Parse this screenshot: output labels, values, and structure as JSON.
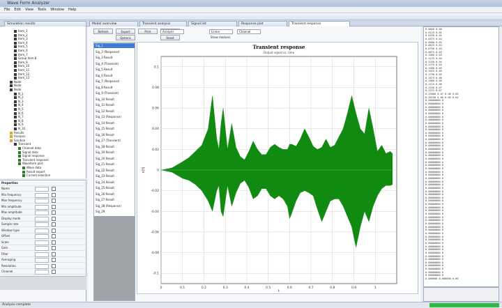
{
  "window": {
    "title": "Wave Form Analyzer"
  },
  "menu": [
    "File",
    "Edit",
    "View",
    "Tools",
    "Window",
    "Help"
  ],
  "tabs": [
    {
      "label": "Simulation results"
    },
    {
      "label": "Model overview"
    },
    {
      "label": "Transient analysis"
    },
    {
      "label": "Signal list"
    },
    {
      "label": "Response plot"
    },
    {
      "label": "Transient response"
    }
  ],
  "tree": {
    "items": [
      {
        "label": "Item_1",
        "kind": "node",
        "indent": 1
      },
      {
        "label": "Item_2",
        "kind": "node",
        "indent": 1
      },
      {
        "label": "Item_3",
        "kind": "node",
        "indent": 1
      },
      {
        "label": "Item_4",
        "kind": "node",
        "indent": 1
      },
      {
        "label": "Item_5",
        "kind": "node",
        "indent": 1
      },
      {
        "label": "Item_6",
        "kind": "node",
        "indent": 1
      },
      {
        "label": "Item_7",
        "kind": "node",
        "indent": 1
      },
      {
        "label": "Group item 8",
        "kind": "node",
        "indent": 1
      },
      {
        "label": "Item_9",
        "kind": "node",
        "indent": 1
      },
      {
        "label": "Item_10",
        "kind": "node",
        "indent": 1
      },
      {
        "label": "Item_11",
        "kind": "node",
        "indent": 1
      },
      {
        "label": "Item_12",
        "kind": "node",
        "indent": 1
      },
      {
        "label": "Item_13",
        "kind": "node",
        "indent": 1
      },
      {
        "label": "Node",
        "kind": "node",
        "indent": 0
      },
      {
        "label": "Node",
        "kind": "node",
        "indent": 0
      },
      {
        "label": "Node",
        "kind": "node",
        "indent": 0
      },
      {
        "label": "N_1",
        "kind": "node",
        "indent": 1
      },
      {
        "label": "N_2",
        "kind": "node",
        "indent": 1
      },
      {
        "label": "N_3",
        "kind": "node",
        "indent": 1
      },
      {
        "label": "N_4",
        "kind": "node",
        "indent": 1
      },
      {
        "label": "N_5",
        "kind": "node",
        "indent": 1
      },
      {
        "label": "N_6",
        "kind": "node",
        "indent": 1
      },
      {
        "label": "N_7",
        "kind": "node",
        "indent": 1
      },
      {
        "label": "N_8",
        "kind": "node",
        "indent": 1
      },
      {
        "label": "N_9",
        "kind": "node",
        "indent": 1
      },
      {
        "label": "N_10",
        "kind": "node",
        "indent": 1
      },
      {
        "label": "Results",
        "kind": "folder",
        "indent": 0
      },
      {
        "label": "Analysis",
        "kind": "folder",
        "indent": 0
      },
      {
        "label": "Solution",
        "kind": "folder",
        "indent": 0
      },
      {
        "label": "Transient",
        "kind": "node",
        "indent": 1
      },
      {
        "label": "Channel data",
        "kind": "wave",
        "indent": 2
      },
      {
        "label": "Signal data",
        "kind": "wave",
        "indent": 2
      },
      {
        "label": "Signal response",
        "kind": "wave",
        "indent": 2
      },
      {
        "label": "Transient response",
        "kind": "wave",
        "indent": 2
      },
      {
        "label": "Waveform plot",
        "kind": "wave",
        "indent": 2
      },
      {
        "label": "Wave data",
        "kind": "wave",
        "indent": 3
      },
      {
        "label": "Result export",
        "kind": "wave",
        "indent": 3
      },
      {
        "label": "Current selection",
        "kind": "wave",
        "indent": 3
      }
    ]
  },
  "properties": {
    "header": "Properties",
    "rows": [
      {
        "label": "Name"
      },
      {
        "label": "Min frequency"
      },
      {
        "label": "Max frequency"
      },
      {
        "label": "Min amplitude"
      },
      {
        "label": "Max amplitude"
      },
      {
        "label": "Display mode"
      },
      {
        "label": "Sample rate"
      },
      {
        "label": "Window type"
      },
      {
        "label": "Offset"
      },
      {
        "label": "Scale"
      },
      {
        "label": "Gain"
      },
      {
        "label": "Filter"
      },
      {
        "label": "Averaging"
      },
      {
        "label": "Resolution"
      },
      {
        "label": "Channel"
      }
    ]
  },
  "doc_toolbar": {
    "buttons": [
      "Refresh",
      "Export",
      "Print",
      "Zoom",
      "Options",
      "Reset"
    ],
    "selects": [
      "Analysis",
      "Linear",
      "Channel"
    ],
    "checkbox_label": "Show markers"
  },
  "wave_list": {
    "items": [
      "Sig_1",
      "Sig_2 (Response)",
      "Sig_3 Result",
      "Sig_4 (Transient)",
      "Sig_5 Result",
      "Sig_6 Result",
      "Sig_7 (Response)",
      "Sig_8 Result",
      "Sig_9 (Transient)",
      "Sig_10 Result",
      "Sig_11 Result",
      "Sig_12 Result",
      "Sig_13 (Response)",
      "Sig_14 Result",
      "Sig_15 Result",
      "Sig_16 Result",
      "Sig_17 (Transient)",
      "Sig_18 Result",
      "Sig_19 Result",
      "Sig_20 Result",
      "Sig_21 Result",
      "Sig_22 Result",
      "Sig_23 Result",
      "Sig_24 Result",
      "Sig_25 Result",
      "Sig_26 Result",
      "Sig_27 Result",
      "Sig_28 (Response)",
      "Sig_29"
    ],
    "selected_index": 0
  },
  "chart_data": {
    "type": "area",
    "title": "Transient response",
    "subtitle": "Output signal vs. time",
    "xlabel": "t",
    "ylabel": "x(t)",
    "xlim": [
      0,
      1.1
    ],
    "ylim": [
      -0.11,
      0.11
    ],
    "xticks": [
      0,
      0.1,
      0.2,
      0.3,
      0.4,
      0.5,
      0.6,
      0.7,
      0.8,
      0.9,
      1.0
    ],
    "yticks": [
      -0.1,
      -0.08,
      -0.06,
      -0.04,
      -0.02,
      0,
      0.02,
      0.04,
      0.06,
      0.08,
      0.1
    ],
    "grid": true,
    "series": [
      {
        "color": "#108a10",
        "x": [
          0.0,
          0.05,
          0.1,
          0.13,
          0.16,
          0.19,
          0.22,
          0.24,
          0.26,
          0.27,
          0.28,
          0.29,
          0.31,
          0.33,
          0.35,
          0.37,
          0.39,
          0.41,
          0.43,
          0.45,
          0.47,
          0.49,
          0.51,
          0.53,
          0.55,
          0.57,
          0.59,
          0.6,
          0.61,
          0.63,
          0.65,
          0.67,
          0.69,
          0.71,
          0.73,
          0.75,
          0.77,
          0.79,
          0.81,
          0.83,
          0.85,
          0.87,
          0.89,
          0.91,
          0.93,
          0.95,
          0.97,
          0.99,
          1.01,
          1.03,
          1.05,
          1.07,
          1.08
        ],
        "upper": [
          0.0,
          0.002,
          0.008,
          0.012,
          0.018,
          0.024,
          0.04,
          0.072,
          0.03,
          0.02,
          0.045,
          0.06,
          0.02,
          0.045,
          0.022,
          0.013,
          0.01,
          0.018,
          0.028,
          0.02,
          0.015,
          0.015,
          0.022,
          0.025,
          0.022,
          0.02,
          0.02,
          0.025,
          0.025,
          0.023,
          0.03,
          0.04,
          0.032,
          0.023,
          0.02,
          0.022,
          0.03,
          0.022,
          0.024,
          0.032,
          0.04,
          0.055,
          0.072,
          0.055,
          0.04,
          0.035,
          0.06,
          0.04,
          0.018,
          0.024,
          0.016,
          0.018,
          0.016
        ],
        "lower": [
          0.0,
          -0.002,
          -0.008,
          -0.01,
          -0.014,
          -0.02,
          -0.03,
          -0.04,
          -0.02,
          -0.015,
          -0.04,
          -0.045,
          -0.015,
          -0.035,
          -0.022,
          -0.013,
          -0.01,
          -0.017,
          -0.028,
          -0.025,
          -0.018,
          -0.018,
          -0.025,
          -0.028,
          -0.025,
          -0.028,
          -0.035,
          -0.047,
          -0.042,
          -0.03,
          -0.022,
          -0.02,
          -0.022,
          -0.025,
          -0.038,
          -0.05,
          -0.04,
          -0.03,
          -0.028,
          -0.028,
          -0.035,
          -0.045,
          -0.055,
          -0.075,
          -0.055,
          -0.04,
          -0.05,
          -0.035,
          -0.025,
          -0.018,
          -0.015,
          -0.015,
          -0.014
        ]
      }
    ]
  },
  "right_panel": {
    "lines": [
      "   0.0000  0.00",
      "   0.0125  0.01",
      "   0.0250  0.01",
      "   0.0375  0.02",
      "   0.0500  0.02",
      "   0.0625  0.02",
      "   0.0750  0.03",
      "   0.0875  0.03",
      "   0.1000  0.03",
      "   0.1125  0.04",
      "   0.1250  0.04",
      "   0.1375  0.04",
      "   0.1500  0.05",
      "   0.1625  0.05",
      "   0.1750  0.05",
      "   0.1875  0.06",
      "   0.2000  0.06",
      "   0.2125  0.06",
      "   0.2250  0.07",
      "   0.2375  0.07",
      " 0.25000 0.07 0.06 0.05",
      " 0.26250 0.06 0.05 0.04",
      "  0.00000000   0",
      "  0.00000000   0",
      "  0.00000000   0",
      "  0.00000000   0",
      "  0.00000000   0",
      "  0.00000000   0",
      "  0.00000000   0",
      "  0.00000000   0",
      "  0.00000000   0",
      "  0.00000000   0",
      "  0.00000000   0",
      "  0.00000000   0",
      "  0.00000000   0",
      "  0.00000000   0",
      "  0.00000000   0",
      "  0.00000000   0",
      "  0.00000000   0",
      "  0.00000000   0",
      "  0.00000000   0",
      "  0.00000000   0",
      "  0.00000000   0",
      "  0.00000000   0",
      "  0.00000000   0",
      "  0.00000000   0",
      "  0.00000000   0",
      "  0.00000000   0",
      "  0.00000000   0",
      "  0.00000000   0",
      "  0.00000000   0",
      "  0.00000000   0",
      "  0.00000000   0",
      "  0.00000000   0",
      "  0.00000000   0",
      "  0.00000000   0",
      "  0.00000000   0",
      "  0.00000000   0",
      "  0.00000000   0",
      "  0.00000000   0",
      "  0.00000000   0",
      "  0.00000000   0",
      "  0.00000000   0",
      "  0.00000000   0",
      "  0.00000000   0",
      "  0.00000000   0",
      "  0.00000000   0",
      "  0.00000000   0",
      "  0.00000000   0",
      "  0.00000000   0",
      "  0.00000000   0",
      "  0.00000000   0",
      "  0.00000000   0",
      "  0.00000000   0",
      "  0.00000000   0",
      "  0.00000000   0",
      "  0.00000000   0",
      " 0.000000  0.000000  0.00"
    ]
  },
  "status": {
    "text": "Analysis complete"
  },
  "colors": {
    "accent": "#3d7bd4",
    "waveform": "#108a10",
    "progress": "#2dbb45"
  }
}
